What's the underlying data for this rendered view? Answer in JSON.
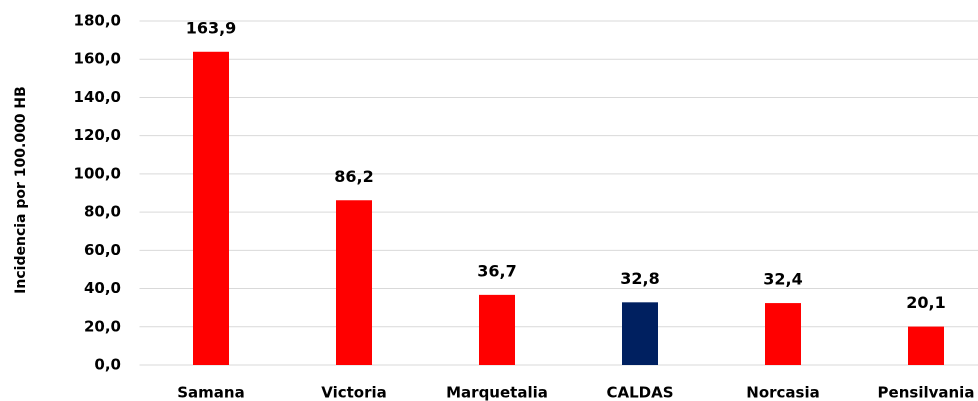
{
  "chart_data": {
    "type": "bar",
    "y_label": "Incidencia por 100.000 HB",
    "categories": [
      "Samana",
      "Victoria",
      "Marquetalia",
      "CALDAS",
      "Norcasia",
      "Pensilvania"
    ],
    "values": [
      163.9,
      86.2,
      36.7,
      32.8,
      32.4,
      20.1
    ],
    "value_labels": [
      "163,9",
      "86,2",
      "36,7",
      "32,8",
      "32,4",
      "20,1"
    ],
    "colors": [
      "#ff0000",
      "#ff0000",
      "#ff0000",
      "#002060",
      "#ff0000",
      "#ff0000"
    ],
    "ylim": [
      0,
      180
    ],
    "yticks": [
      {
        "value": 0,
        "label": "0,0"
      },
      {
        "value": 20,
        "label": "20,0"
      },
      {
        "value": 40,
        "label": "40,0"
      },
      {
        "value": 60,
        "label": "60,0"
      },
      {
        "value": 80,
        "label": "80,0"
      },
      {
        "value": 100,
        "label": "100,0"
      },
      {
        "value": 120,
        "label": "120,0"
      },
      {
        "value": 140,
        "label": "140,0"
      },
      {
        "value": 160,
        "label": "160,0"
      },
      {
        "value": 180,
        "label": "180,0"
      }
    ],
    "grid": true
  }
}
